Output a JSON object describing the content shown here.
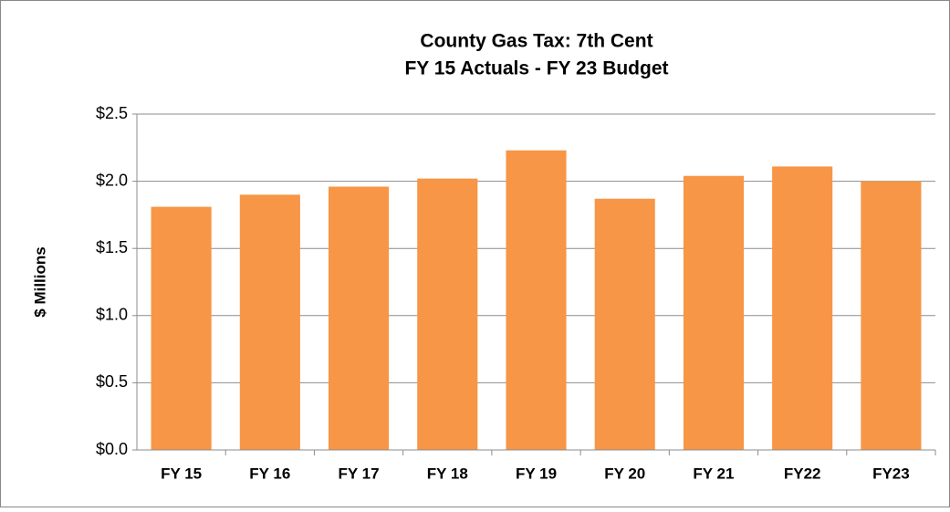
{
  "chart_data": {
    "type": "bar",
    "title": "County Gas Tax: 7th Cent",
    "subtitle": "FY 15 Actuals - FY 23 Budget",
    "ylabel": "$ Millions",
    "categories": [
      "FY 15",
      "FY 16",
      "FY 17",
      "FY 18",
      "FY 19",
      "FY 20",
      "FY 21",
      "FY22",
      "FY23"
    ],
    "values": [
      1.81,
      1.9,
      1.96,
      2.02,
      2.23,
      1.87,
      2.04,
      2.11,
      2.0
    ],
    "color": "#f79646",
    "ylim": [
      0,
      2.5
    ],
    "yticks": [
      {
        "value": 0,
        "label": "$0.0"
      },
      {
        "value": 0.5,
        "label": "$0.5"
      },
      {
        "value": 1.0,
        "label": "$1.0"
      },
      {
        "value": 1.5,
        "label": "$1.5"
      },
      {
        "value": 2.0,
        "label": "$2.0"
      },
      {
        "value": 2.5,
        "label": "$2.5"
      }
    ],
    "grid": true
  }
}
